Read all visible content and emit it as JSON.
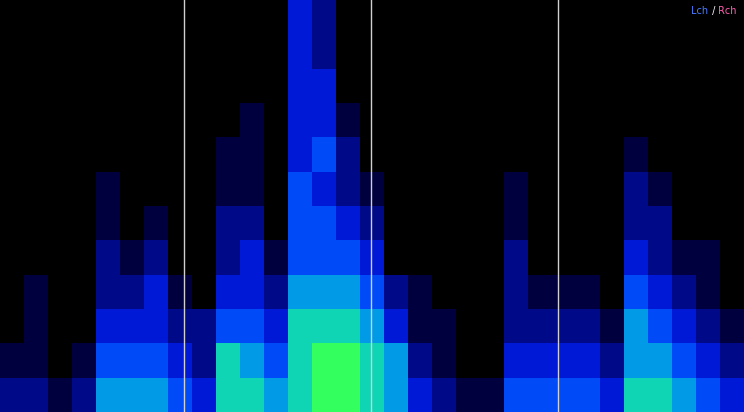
{
  "chart_data": {
    "type": "heatmap",
    "tick_labels": false,
    "grid": false,
    "xlim": [
      0,
      31
    ],
    "ylim": [
      0,
      12
    ],
    "color_range": [
      0,
      10
    ],
    "vlines": [
      7.67,
      15.46,
      23.25
    ],
    "labels": [
      {
        "text": "Lch",
        "color": "#4a7cff"
      },
      {
        "text": " / ",
        "color": "#ffffff"
      },
      {
        "text": "Rch",
        "color": "#ff5fb0"
      }
    ],
    "cells": [
      [
        2,
        2,
        1,
        2,
        5,
        5,
        5,
        4,
        3,
        6,
        6,
        5,
        6,
        7,
        7,
        6,
        5,
        3,
        2,
        1,
        1,
        4,
        4,
        4,
        4,
        3,
        6,
        6,
        5,
        4,
        3
      ],
      [
        1,
        1,
        0,
        1,
        4,
        4,
        4,
        3,
        2,
        6,
        5,
        4,
        6,
        7,
        7,
        6,
        5,
        2,
        1,
        0,
        0,
        3,
        3,
        3,
        3,
        2,
        5,
        5,
        4,
        3,
        2
      ],
      [
        0,
        1,
        0,
        0,
        3,
        3,
        3,
        2,
        2,
        4,
        4,
        3,
        6,
        6,
        6,
        5,
        3,
        1,
        1,
        0,
        0,
        2,
        2,
        2,
        2,
        1,
        5,
        4,
        3,
        2,
        1
      ],
      [
        0,
        1,
        0,
        0,
        2,
        2,
        3,
        1,
        0,
        3,
        3,
        2,
        5,
        5,
        5,
        4,
        2,
        1,
        0,
        0,
        0,
        2,
        1,
        1,
        1,
        0,
        4,
        3,
        2,
        1,
        0
      ],
      [
        0,
        0,
        0,
        0,
        2,
        1,
        2,
        0,
        0,
        2,
        3,
        1,
        4,
        4,
        4,
        3,
        0,
        0,
        0,
        0,
        0,
        2,
        0,
        0,
        0,
        0,
        3,
        2,
        1,
        1,
        0
      ],
      [
        0,
        0,
        0,
        0,
        1,
        0,
        1,
        0,
        0,
        2,
        2,
        0,
        4,
        4,
        3,
        2,
        0,
        0,
        0,
        0,
        0,
        1,
        0,
        0,
        0,
        0,
        2,
        2,
        0,
        0,
        0
      ],
      [
        0,
        0,
        0,
        0,
        1,
        0,
        0,
        0,
        0,
        1,
        1,
        0,
        4,
        3,
        2,
        1,
        0,
        0,
        0,
        0,
        0,
        1,
        0,
        0,
        0,
        0,
        2,
        1,
        0,
        0,
        0
      ],
      [
        0,
        0,
        0,
        0,
        0,
        0,
        0,
        0,
        0,
        1,
        1,
        0,
        3,
        4,
        2,
        0,
        0,
        0,
        0,
        0,
        0,
        0,
        0,
        0,
        0,
        0,
        1,
        0,
        0,
        0,
        0
      ],
      [
        0,
        0,
        0,
        0,
        0,
        0,
        0,
        0,
        0,
        0,
        1,
        0,
        3,
        3,
        1,
        0,
        0,
        0,
        0,
        0,
        0,
        0,
        0,
        0,
        0,
        0,
        0,
        0,
        0,
        0,
        0
      ],
      [
        0,
        0,
        0,
        0,
        0,
        0,
        0,
        0,
        0,
        0,
        0,
        0,
        3,
        3,
        0,
        0,
        0,
        0,
        0,
        0,
        0,
        0,
        0,
        0,
        0,
        0,
        0,
        0,
        0,
        0,
        0
      ],
      [
        0,
        0,
        0,
        0,
        0,
        0,
        0,
        0,
        0,
        0,
        0,
        0,
        3,
        2,
        0,
        0,
        0,
        0,
        0,
        0,
        0,
        0,
        0,
        0,
        0,
        0,
        0,
        0,
        0,
        0,
        0
      ],
      [
        0,
        0,
        0,
        0,
        0,
        0,
        0,
        0,
        0,
        0,
        0,
        0,
        3,
        2,
        0,
        0,
        0,
        0,
        0,
        0,
        0,
        0,
        0,
        0,
        0,
        0,
        0,
        0,
        0,
        0,
        0
      ]
    ]
  }
}
